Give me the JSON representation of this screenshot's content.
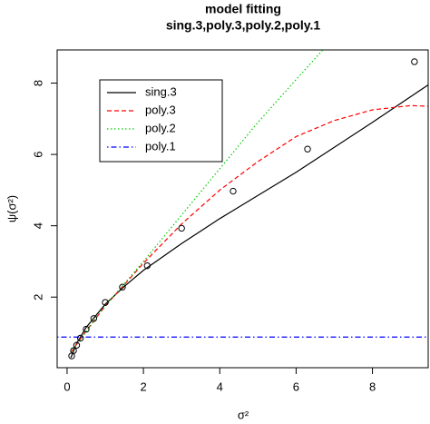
{
  "chart_data": {
    "type": "line",
    "title": "model fitting",
    "subtitle": "sing.3,poly.3,poly.2,poly.1",
    "x_label": "σ²",
    "y_label": "ψ(σ²)",
    "xlim": [
      -0.26,
      9.46
    ],
    "ylim": [
      0.02,
      8.93
    ],
    "xticks": [
      0,
      2,
      4,
      6,
      8
    ],
    "yticks": [
      2,
      4,
      6,
      8
    ],
    "points": {
      "x": [
        0.12,
        0.17,
        0.25,
        0.35,
        0.5,
        0.7,
        1.0,
        1.45,
        2.1,
        3.0,
        4.35,
        6.3,
        9.1
      ],
      "values": [
        0.35,
        0.5,
        0.65,
        0.85,
        1.1,
        1.4,
        1.85,
        2.28,
        2.88,
        3.93,
        4.97,
        6.15,
        8.6
      ]
    },
    "series": [
      {
        "name": "sing.3",
        "color": "#000000",
        "linestyle": "solid",
        "x": [
          0.1,
          0.25,
          0.5,
          1,
          1.5,
          2,
          3,
          4,
          5,
          6,
          7,
          8,
          9.46
        ],
        "values": [
          0.3,
          0.7,
          1.15,
          1.8,
          2.3,
          2.75,
          3.5,
          4.2,
          4.85,
          5.5,
          6.2,
          6.9,
          7.95
        ]
      },
      {
        "name": "poly.3",
        "color": "#ff0000",
        "linestyle": "dashed",
        "x": [
          0.1,
          0.5,
          1,
          2,
          3,
          4,
          5,
          6,
          7,
          8,
          9,
          9.46
        ],
        "values": [
          0.45,
          1.05,
          1.75,
          2.95,
          4.05,
          5.0,
          5.8,
          6.5,
          6.95,
          7.25,
          7.37,
          7.35
        ]
      },
      {
        "name": "poly.2",
        "color": "#00cd00",
        "linestyle": "dotted",
        "x": [
          0.1,
          1,
          2,
          3,
          4,
          5,
          6,
          6.7
        ],
        "values": [
          0.45,
          1.75,
          3.0,
          4.3,
          5.6,
          6.9,
          8.1,
          8.93
        ]
      },
      {
        "name": "poly.1",
        "color": "#0000ff",
        "linestyle": "dashdot",
        "x": [
          -0.26,
          9.46
        ],
        "values": [
          0.88,
          0.88
        ]
      }
    ]
  }
}
